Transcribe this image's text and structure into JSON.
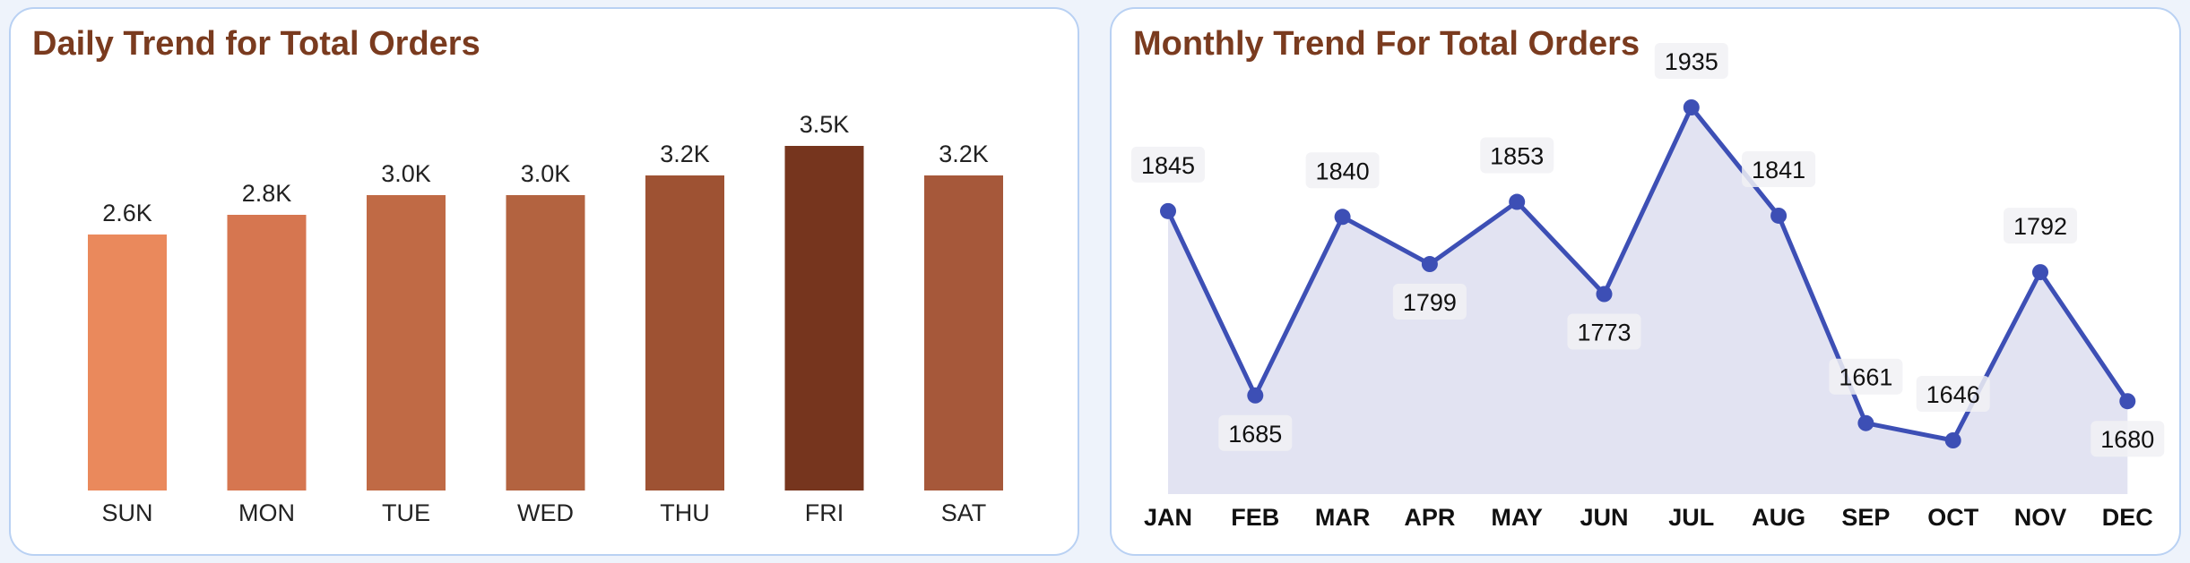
{
  "daily": {
    "title": "Daily Trend for Total Orders",
    "chart_data": {
      "type": "bar",
      "categories": [
        "SUN",
        "MON",
        "TUE",
        "WED",
        "THU",
        "FRI",
        "SAT"
      ],
      "values": [
        2600,
        2800,
        3000,
        3000,
        3200,
        3500,
        3200
      ],
      "data_labels": [
        "2.6K",
        "2.8K",
        "3.0K",
        "3.0K",
        "3.2K",
        "3.5K",
        "3.2K"
      ],
      "colors": [
        "#ea895c",
        "#d67650",
        "#c06a45",
        "#b36340",
        "#9e5233",
        "#76351e",
        "#a6583a"
      ],
      "ylim": [
        0,
        3500
      ],
      "grid": false,
      "legend": "none"
    }
  },
  "monthly": {
    "title": "Monthly Trend For Total Orders",
    "chart_data": {
      "type": "area",
      "categories": [
        "JAN",
        "FEB",
        "MAR",
        "APR",
        "MAY",
        "JUN",
        "JUL",
        "AUG",
        "SEP",
        "OCT",
        "NOV",
        "DEC"
      ],
      "values": [
        1845,
        1685,
        1840,
        1799,
        1853,
        1773,
        1935,
        1841,
        1661,
        1646,
        1792,
        1680
      ],
      "label_position": [
        "above",
        "below",
        "above",
        "below",
        "above",
        "below",
        "above",
        "above",
        "above",
        "above",
        "above",
        "below"
      ],
      "line_color": "#3d4fb5",
      "fill_color": "#e2e3f2",
      "grid": false,
      "legend": "none"
    }
  }
}
